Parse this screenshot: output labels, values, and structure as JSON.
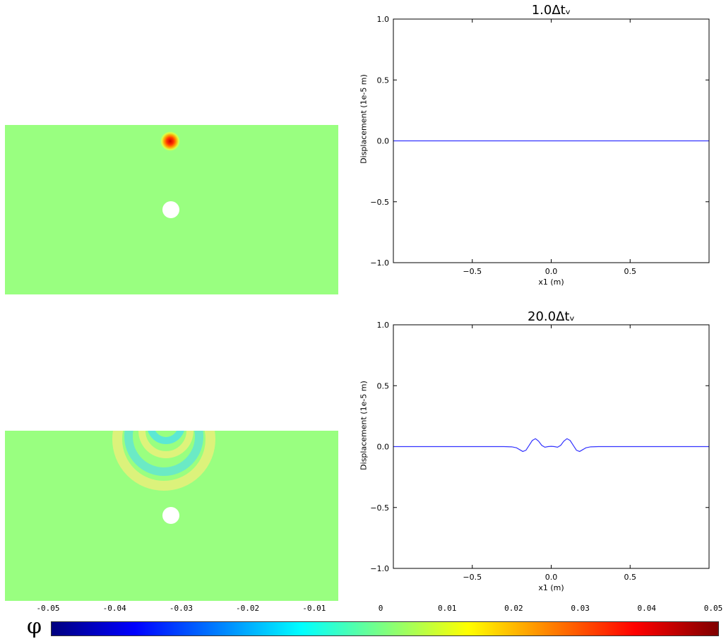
{
  "colors": {
    "field_background": "#99ff80",
    "line": "#3333ff",
    "colormap": [
      "#00007f",
      "#0000ff",
      "#007fff",
      "#00ffff",
      "#7fff7f",
      "#ffff00",
      "#ff7f00",
      "#ff0000",
      "#7f0000"
    ]
  },
  "fields": [
    {
      "id": "field-top",
      "features": "single red-orange source pulse near the top surface; white circular obstacle below"
    },
    {
      "id": "field-bottom",
      "features": "expanding cyan/yellow circular wave rings near the top surface; white circular obstacle below"
    }
  ],
  "colorbar": {
    "symbol": "φ",
    "ticks": [
      "-0.05",
      "-0.04",
      "-0.03",
      "-0.02",
      "-0.01",
      "0",
      "0.01",
      "0.02",
      "0.03",
      "0.04",
      "0.05"
    ]
  },
  "chart_data": [
    {
      "type": "line",
      "title": "1.0Δtᵥ",
      "xlabel": "x1 (m)",
      "ylabel": "Displacement  (1e-5 m)",
      "xlim": [
        -1.0,
        1.0
      ],
      "ylim": [
        -1.0,
        1.0
      ],
      "xticks": [
        "−0.5",
        "0.0",
        "0.5"
      ],
      "xtick_values": [
        -0.5,
        0.0,
        0.5
      ],
      "yticks": [
        "1.0",
        "0.5",
        "0.0",
        "−0.5",
        "−1.0"
      ],
      "ytick_values": [
        1.0,
        0.5,
        0.0,
        -0.5,
        -1.0
      ],
      "grid": false,
      "series": [
        {
          "x": [
            -1.0,
            -0.5,
            0.0,
            0.5,
            1.0
          ],
          "y": [
            0.0,
            0.0,
            0.0,
            0.0,
            0.0
          ]
        }
      ]
    },
    {
      "type": "line",
      "title": "20.0Δtᵥ",
      "xlabel": "x1 (m)",
      "ylabel": "Displacement  (1e-5 m)",
      "xlim": [
        -1.0,
        1.0
      ],
      "ylim": [
        -1.0,
        1.0
      ],
      "xticks": [
        "−0.5",
        "0.0",
        "0.5"
      ],
      "xtick_values": [
        -0.5,
        0.0,
        0.5
      ],
      "yticks": [
        "1.0",
        "0.5",
        "0.0",
        "−0.5",
        "−1.0"
      ],
      "ytick_values": [
        1.0,
        0.5,
        0.0,
        -0.5,
        -1.0
      ],
      "grid": false,
      "series": [
        {
          "x": [
            -1.0,
            -0.5,
            -0.3,
            -0.25,
            -0.22,
            -0.2,
            -0.18,
            -0.16,
            -0.14,
            -0.12,
            -0.1,
            -0.08,
            -0.06,
            -0.04,
            -0.02,
            0.0,
            0.02,
            0.04,
            0.06,
            0.08,
            0.1,
            0.12,
            0.14,
            0.16,
            0.18,
            0.2,
            0.22,
            0.25,
            0.3,
            0.5,
            1.0
          ],
          "y": [
            0.0,
            0.0,
            0.0,
            -0.002,
            -0.01,
            -0.025,
            -0.04,
            -0.03,
            0.01,
            0.05,
            0.065,
            0.045,
            0.01,
            -0.005,
            0.0,
            0.002,
            0.0,
            -0.005,
            0.01,
            0.045,
            0.065,
            0.05,
            0.01,
            -0.03,
            -0.04,
            -0.025,
            -0.01,
            -0.002,
            0.0,
            0.0,
            0.0
          ]
        }
      ]
    }
  ]
}
